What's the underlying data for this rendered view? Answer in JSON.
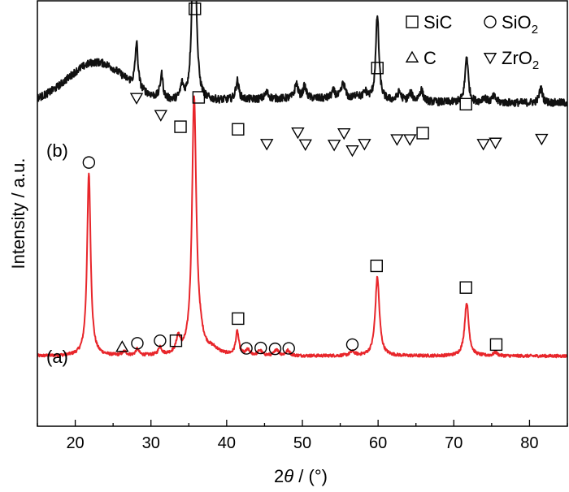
{
  "chart_data": {
    "type": "line",
    "title": "",
    "xlabel_prefix": "2",
    "xlabel_theta": "θ",
    "xlabel_suffix": " / (°)",
    "ylabel": "Intensity / a.u.",
    "xlim": [
      15,
      85
    ],
    "ylim": [
      0,
      100
    ],
    "xticks": [
      20,
      30,
      40,
      50,
      60,
      70,
      80
    ],
    "yticks_shown": false,
    "legend": {
      "position": "top-right",
      "entries": [
        {
          "symbol": "square",
          "label": "SiC",
          "sub": ""
        },
        {
          "symbol": "circle",
          "label": "SiO",
          "sub": "2"
        },
        {
          "symbol": "triangle-up",
          "label": "C",
          "sub": ""
        },
        {
          "symbol": "triangle-down",
          "label": "ZrO",
          "sub": "2"
        }
      ]
    },
    "series": [
      {
        "name": "(a)",
        "label": "(a)",
        "color": "#e8262b",
        "baseline": 16.5,
        "noise": 0.35,
        "background": [],
        "peaks": [
          {
            "x": 21.8,
            "h": 43,
            "w": 0.28
          },
          {
            "x": 26.5,
            "h": 0.9,
            "w": 0.3
          },
          {
            "x": 28.2,
            "h": 1.5,
            "w": 0.25
          },
          {
            "x": 31.2,
            "h": 1.9,
            "w": 0.25
          },
          {
            "x": 33.6,
            "h": 3.8,
            "w": 0.3
          },
          {
            "x": 35.7,
            "h": 59,
            "w": 0.33
          },
          {
            "x": 36.3,
            "h": 3.5,
            "w": 0.7
          },
          {
            "x": 38.2,
            "h": 1.2,
            "w": 0.9
          },
          {
            "x": 41.4,
            "h": 5.5,
            "w": 0.25
          },
          {
            "x": 42.8,
            "h": 1.2,
            "w": 0.3
          },
          {
            "x": 44.4,
            "h": 1.2,
            "w": 0.3
          },
          {
            "x": 46.6,
            "h": 1.5,
            "w": 0.3
          },
          {
            "x": 48.1,
            "h": 1.2,
            "w": 0.3
          },
          {
            "x": 56.6,
            "h": 0.9,
            "w": 0.4
          },
          {
            "x": 59.9,
            "h": 18.5,
            "w": 0.33
          },
          {
            "x": 71.7,
            "h": 12.5,
            "w": 0.33
          },
          {
            "x": 75.5,
            "h": 0.8,
            "w": 0.3
          }
        ],
        "markers": [
          {
            "symbol": "circle",
            "x": 21.8,
            "y": 62
          },
          {
            "symbol": "triangle-up",
            "x": 26.2,
            "y": 18.6
          },
          {
            "symbol": "circle",
            "x": 28.2,
            "y": 19.5
          },
          {
            "symbol": "circle",
            "x": 31.2,
            "y": 20.1
          },
          {
            "symbol": "square",
            "x": 33.3,
            "y": 20.1
          },
          {
            "symbol": "square",
            "x": 36.3,
            "y": 77.3
          },
          {
            "symbol": "square",
            "x": 41.5,
            "y": 25.3
          },
          {
            "symbol": "circle",
            "x": 42.6,
            "y": 18.3
          },
          {
            "symbol": "circle",
            "x": 44.5,
            "y": 18.4
          },
          {
            "symbol": "circle",
            "x": 46.4,
            "y": 18.2
          },
          {
            "symbol": "circle",
            "x": 48.2,
            "y": 18.3
          },
          {
            "symbol": "circle",
            "x": 56.6,
            "y": 19.2
          },
          {
            "symbol": "square",
            "x": 59.8,
            "y": 37.7
          },
          {
            "symbol": "square",
            "x": 71.6,
            "y": 32.6
          },
          {
            "symbol": "square",
            "x": 75.6,
            "y": 19.2
          }
        ]
      },
      {
        "name": "(b)",
        "label": "(b)",
        "color": "#111111",
        "baseline": 76,
        "noise": 0.9,
        "background": [
          {
            "x": 22.8,
            "h": 9.5,
            "w": 3.8
          },
          {
            "x": 50,
            "h": 1.0,
            "w": 9
          }
        ],
        "peaks": [
          {
            "x": 28.1,
            "h": 10.5,
            "w": 0.22
          },
          {
            "x": 31.4,
            "h": 5.8,
            "w": 0.22
          },
          {
            "x": 34.1,
            "h": 3.2,
            "w": 0.25
          },
          {
            "x": 35.7,
            "h": 60,
            "w": 0.25
          },
          {
            "x": 41.4,
            "h": 4.5,
            "w": 0.25
          },
          {
            "x": 45.3,
            "h": 1.5,
            "w": 0.3
          },
          {
            "x": 49.2,
            "h": 3.5,
            "w": 0.25
          },
          {
            "x": 50.3,
            "h": 2.8,
            "w": 0.25
          },
          {
            "x": 54.1,
            "h": 1.7,
            "w": 0.3
          },
          {
            "x": 55.4,
            "h": 3.6,
            "w": 0.3
          },
          {
            "x": 57.2,
            "h": 1.2,
            "w": 0.3
          },
          {
            "x": 58.3,
            "h": 1.7,
            "w": 0.3
          },
          {
            "x": 59.9,
            "h": 20,
            "w": 0.25
          },
          {
            "x": 62.8,
            "h": 2.0,
            "w": 0.3
          },
          {
            "x": 64.3,
            "h": 1.8,
            "w": 0.3
          },
          {
            "x": 65.7,
            "h": 2.7,
            "w": 0.3
          },
          {
            "x": 71.7,
            "h": 11,
            "w": 0.25
          },
          {
            "x": 74.0,
            "h": 1.2,
            "w": 0.3
          },
          {
            "x": 75.3,
            "h": 1.4,
            "w": 0.3
          },
          {
            "x": 81.5,
            "h": 3.5,
            "w": 0.25
          }
        ],
        "markers": [
          {
            "symbol": "triangle-down",
            "x": 28.1,
            "y": 77.2
          },
          {
            "symbol": "triangle-down",
            "x": 31.3,
            "y": 73.2
          },
          {
            "symbol": "square",
            "x": 33.9,
            "y": 70.4
          },
          {
            "symbol": "square",
            "x": 35.8,
            "y": 98.1
          },
          {
            "symbol": "square",
            "x": 41.5,
            "y": 69.8
          },
          {
            "symbol": "triangle-down",
            "x": 45.3,
            "y": 66.4
          },
          {
            "symbol": "triangle-down",
            "x": 49.4,
            "y": 69.1
          },
          {
            "symbol": "triangle-down",
            "x": 50.4,
            "y": 66.3
          },
          {
            "symbol": "triangle-down",
            "x": 54.2,
            "y": 66.2
          },
          {
            "symbol": "triangle-down",
            "x": 55.5,
            "y": 68.9
          },
          {
            "symbol": "triangle-down",
            "x": 56.6,
            "y": 64.9
          },
          {
            "symbol": "triangle-down",
            "x": 58.2,
            "y": 66.4
          },
          {
            "symbol": "square",
            "x": 59.9,
            "y": 84.2
          },
          {
            "symbol": "triangle-down",
            "x": 62.5,
            "y": 67.5
          },
          {
            "symbol": "triangle-down",
            "x": 64.2,
            "y": 67.5
          },
          {
            "symbol": "square",
            "x": 65.9,
            "y": 68.9
          },
          {
            "symbol": "square",
            "x": 71.6,
            "y": 75.7
          },
          {
            "symbol": "triangle-down",
            "x": 73.9,
            "y": 66.4
          },
          {
            "symbol": "triangle-down",
            "x": 75.5,
            "y": 66.7
          },
          {
            "symbol": "triangle-down",
            "x": 81.6,
            "y": 67.6
          }
        ]
      }
    ]
  }
}
